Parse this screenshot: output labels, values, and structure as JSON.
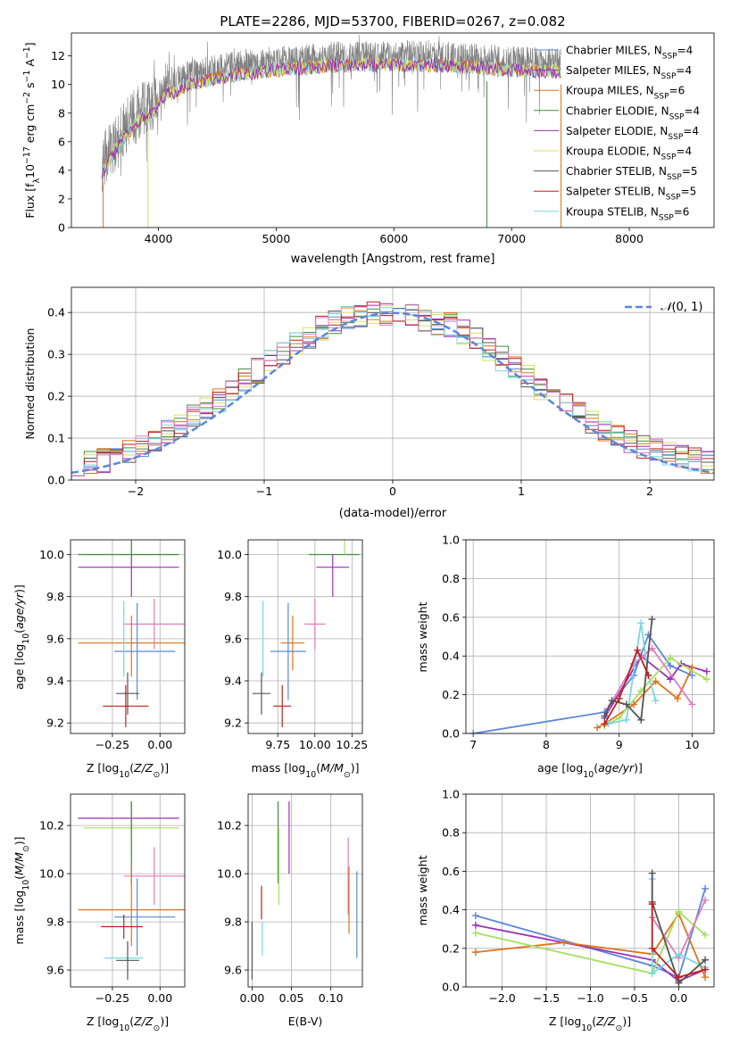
{
  "title": "PLATE=2286, MJD=53700, FIBERID=0267, z=0.082",
  "colors": {
    "Chabrier MILES": "#5b87d8",
    "Salpeter MILES": "#9b31b5",
    "Kroupa MILES": "#e0731c",
    "Chabrier ELODIE": "#3f8f3f",
    "Salpeter ELODIE": "#9b31b5",
    "Kroupa ELODIE": "#d8e060",
    "Chabrier STELIB": "#555555",
    "Salpeter STELIB": "#c21f1f",
    "Kroupa STELIB": "#77d8df",
    "grid": "#b0b0b0",
    "spectrum": "#808080",
    "normal_curve": "#5b87d8",
    "pink": "#e07cc0",
    "lightgreen": "#a6e060"
  },
  "chart_data": [
    {
      "type": "line",
      "id": "spectrum",
      "xlabel": "wavelength [Angstrom, rest frame]",
      "ylabel": "Flux [f_λ10^-17 erg cm^-2 s^-1 A^-1]",
      "xlim": [
        3260,
        8720
      ],
      "ylim": [
        0,
        13.6
      ],
      "xticks": [
        4000,
        5000,
        6000,
        7000,
        8000
      ],
      "yticks": [
        0,
        2,
        4,
        6,
        8,
        10,
        12
      ],
      "grid": false,
      "legend_position": "lower-right",
      "series": [
        {
          "name": "Chabrier MILES, N_SSP=4"
        },
        {
          "name": "Salpeter MILES, N_SSP=4"
        },
        {
          "name": "Kroupa MILES, N_SSP=6"
        },
        {
          "name": "Chabrier ELODIE, N_SSP=4"
        },
        {
          "name": "Salpeter ELODIE, N_SSP=4"
        },
        {
          "name": "Kroupa ELODIE, N_SSP=4"
        },
        {
          "name": "Chabrier STELIB, N_SSP=5"
        },
        {
          "name": "Salpeter STELIB, N_SSP=5"
        },
        {
          "name": "Kroupa STELIB, N_SSP=6"
        }
      ],
      "continuum": {
        "x": [
          3520,
          3700,
          3850,
          3950,
          4050,
          4300,
          4600,
          5000,
          5500,
          6000,
          6500,
          7000,
          7400
        ],
        "y": [
          4.5,
          6.8,
          8.2,
          8.5,
          9.8,
          10.7,
          11.2,
          11.6,
          11.9,
          12.0,
          11.9,
          11.6,
          11.5
        ]
      }
    },
    {
      "type": "line",
      "id": "residuals",
      "xlabel": "(data-model)/error",
      "ylabel": "Normed distribution",
      "xlim": [
        -2.5,
        2.5
      ],
      "ylim": [
        0,
        0.46
      ],
      "xticks": [
        -2,
        -1,
        0,
        1,
        2
      ],
      "yticks": [
        0.0,
        0.1,
        0.2,
        0.3,
        0.4
      ],
      "grid": true,
      "legend_position": "top-right",
      "curve_label": "N(0,1)",
      "bin_width": 0.1,
      "bin_start": -2.5
    },
    {
      "type": "scatter",
      "id": "z-age",
      "xlabel": "Z [log10(Z/Z⊙)]",
      "ylabel": "age [log10(age/yr)]",
      "xlim": [
        -0.47,
        0.13
      ],
      "ylim": [
        9.15,
        10.07
      ],
      "xticks": [
        -0.25,
        0.0
      ],
      "yticks": [
        9.2,
        9.4,
        9.6,
        9.8,
        10.0
      ],
      "grid": true,
      "points": [
        {
          "color": "lightgreen",
          "x": -0.15,
          "xerr": [
            0.25,
            0.25
          ],
          "y": 10.0,
          "yerr": [
            0.0,
            0.09
          ]
        },
        {
          "color": "#3f8f3f",
          "x": -0.15,
          "xerr": [
            0.28,
            0.25
          ],
          "y": 10.0,
          "yerr": [
            0.0,
            0.09
          ]
        },
        {
          "color": "#9b31b5",
          "x": -0.15,
          "xerr": [
            0.28,
            0.25
          ],
          "y": 9.94,
          "yerr": [
            0.14,
            0.06
          ]
        },
        {
          "color": "#e07cc0",
          "x": -0.03,
          "xerr": [
            0.16,
            0.16
          ],
          "y": 9.67,
          "yerr": [
            0.12,
            0.12
          ]
        },
        {
          "color": "#e0731c",
          "x": -0.15,
          "xerr": [
            0.28,
            0.28
          ],
          "y": 9.58,
          "yerr": [
            0.16,
            0.13
          ]
        },
        {
          "color": "#5b87d8",
          "x": -0.12,
          "xerr": [
            0.12,
            0.2
          ],
          "y": 9.54,
          "yerr": [
            0.23,
            0.23
          ]
        },
        {
          "color": "#77d8df",
          "x": -0.19,
          "xerr": [
            0.0,
            0.0
          ],
          "y": 9.6,
          "yerr": [
            0.18,
            0.18
          ]
        },
        {
          "color": "#555555",
          "x": -0.17,
          "xerr": [
            0.06,
            0.06
          ],
          "y": 9.34,
          "yerr": [
            0.1,
            0.1
          ]
        },
        {
          "color": "#c21f1f",
          "x": -0.18,
          "xerr": [
            0.12,
            0.12
          ],
          "y": 9.28,
          "yerr": [
            0.1,
            0.1
          ]
        }
      ]
    },
    {
      "type": "scatter",
      "id": "mass-age",
      "xlabel": "mass [log10(M/M⊙)]",
      "ylabel": "",
      "xlim": [
        9.55,
        10.32
      ],
      "ylim": [
        9.15,
        10.07
      ],
      "xticks": [
        9.75,
        10.0,
        10.25
      ],
      "yticks": [
        9.2,
        9.4,
        9.6,
        9.8,
        10.0
      ],
      "grid": true,
      "points": [
        {
          "color": "#3f8f3f",
          "x": 10.13,
          "xerr": [
            0.17,
            0.17
          ],
          "y": 10.0,
          "yerr": [
            0.0,
            0.0
          ]
        },
        {
          "color": "lightgreen",
          "x": 10.2,
          "xerr": [
            0.0,
            0.0
          ],
          "y": 10.0,
          "yerr": [
            0.0,
            0.09
          ]
        },
        {
          "color": "#9b31b5",
          "x": 10.12,
          "xerr": [
            0.11,
            0.11
          ],
          "y": 9.94,
          "yerr": [
            0.14,
            0.06
          ]
        },
        {
          "color": "#e07cc0",
          "x": 10.0,
          "xerr": [
            0.07,
            0.07
          ],
          "y": 9.67,
          "yerr": [
            0.12,
            0.12
          ]
        },
        {
          "color": "#e0731c",
          "x": 9.85,
          "xerr": [
            0.08,
            0.08
          ],
          "y": 9.58,
          "yerr": [
            0.13,
            0.13
          ]
        },
        {
          "color": "#5b87d8",
          "x": 9.82,
          "xerr": [
            0.12,
            0.12
          ],
          "y": 9.54,
          "yerr": [
            0.23,
            0.23
          ]
        },
        {
          "color": "#77d8df",
          "x": 9.65,
          "xerr": [
            0.0,
            0.0
          ],
          "y": 9.6,
          "yerr": [
            0.18,
            0.18
          ]
        },
        {
          "color": "#555555",
          "x": 9.64,
          "xerr": [
            0.06,
            0.06
          ],
          "y": 9.34,
          "yerr": [
            0.1,
            0.1
          ]
        },
        {
          "color": "#c21f1f",
          "x": 9.78,
          "xerr": [
            0.06,
            0.06
          ],
          "y": 9.28,
          "yerr": [
            0.1,
            0.1
          ]
        }
      ]
    },
    {
      "type": "line",
      "id": "age-weight",
      "xlabel": "age [log10(age/yr)]",
      "ylabel": "mass weight",
      "xlim": [
        6.9,
        10.3
      ],
      "ylim": [
        0,
        1.0
      ],
      "xticks": [
        7,
        8,
        9,
        10
      ],
      "yticks": [
        0.0,
        0.2,
        0.4,
        0.6,
        0.8,
        1.0
      ],
      "grid": true,
      "series": [
        {
          "color": "#5b87d8",
          "x": [
            7.0,
            8.8,
            9.2,
            9.4,
            9.7,
            10.0
          ],
          "y": [
            0.0,
            0.11,
            0.3,
            0.51,
            0.35,
            0.3
          ]
        },
        {
          "color": "#9b31b5",
          "x": [
            8.8,
            9.3,
            9.7,
            9.85,
            10.2
          ],
          "y": [
            0.08,
            0.4,
            0.28,
            0.36,
            0.32
          ]
        },
        {
          "color": "#e0731c",
          "x": [
            8.7,
            8.8,
            9.2,
            9.5,
            9.8,
            10.0
          ],
          "y": [
            0.03,
            0.05,
            0.15,
            0.27,
            0.18,
            0.34
          ]
        },
        {
          "color": "lightgreen",
          "x": [
            8.8,
            9.0,
            9.3,
            9.7,
            10.2
          ],
          "y": [
            0.04,
            0.08,
            0.22,
            0.39,
            0.28
          ]
        },
        {
          "color": "#e07cc0",
          "x": [
            8.85,
            9.2,
            9.45,
            10.0
          ],
          "y": [
            0.13,
            0.36,
            0.44,
            0.15
          ]
        },
        {
          "color": "#77d8df",
          "x": [
            8.85,
            9.1,
            9.3,
            9.4,
            9.5
          ],
          "y": [
            0.05,
            0.07,
            0.57,
            0.3,
            0.17
          ]
        },
        {
          "color": "#555555",
          "x": [
            8.8,
            8.9,
            9.1,
            9.3,
            9.45
          ],
          "y": [
            0.09,
            0.17,
            0.15,
            0.07,
            0.59
          ]
        },
        {
          "color": "#c21f1f",
          "x": [
            8.8,
            9.0,
            9.25,
            9.4
          ],
          "y": [
            0.05,
            0.18,
            0.43,
            0.3
          ]
        }
      ]
    },
    {
      "type": "scatter",
      "id": "z-mass",
      "xlabel": "Z [log10(Z/Z⊙)]",
      "ylabel": "mass [log10(M/M⊙)]",
      "xlim": [
        -0.47,
        0.13
      ],
      "ylim": [
        9.53,
        10.33
      ],
      "xticks": [
        -0.25,
        0.0
      ],
      "yticks": [
        9.6,
        9.8,
        10.0,
        10.2
      ],
      "grid": true,
      "points": [
        {
          "color": "#9b31b5",
          "x": -0.15,
          "xerr": [
            0.28,
            0.25
          ],
          "y": 10.23,
          "yerr": [
            0.07,
            0.07
          ]
        },
        {
          "color": "lightgreen",
          "x": -0.15,
          "xerr": [
            0.25,
            0.25
          ],
          "y": 10.19,
          "yerr": [
            0.11,
            0.11
          ]
        },
        {
          "color": "#3f8f3f",
          "x": -0.15,
          "xerr": [
            0.0,
            0.0
          ],
          "y": 10.13,
          "yerr": [
            0.17,
            0.17
          ]
        },
        {
          "color": "#e07cc0",
          "x": -0.03,
          "xerr": [
            0.16,
            0.16
          ],
          "y": 9.99,
          "yerr": [
            0.12,
            0.12
          ]
        },
        {
          "color": "#e0731c",
          "x": -0.15,
          "xerr": [
            0.28,
            0.28
          ],
          "y": 9.85,
          "yerr": [
            0.15,
            0.19
          ]
        },
        {
          "color": "#5b87d8",
          "x": -0.12,
          "xerr": [
            0.12,
            0.2
          ],
          "y": 9.82,
          "yerr": [
            0.16,
            0.16
          ]
        },
        {
          "color": "#c21f1f",
          "x": -0.19,
          "xerr": [
            0.12,
            0.1
          ],
          "y": 9.78,
          "yerr": [
            0.05,
            0.05
          ]
        },
        {
          "color": "#77d8df",
          "x": -0.19,
          "xerr": [
            0.1,
            0.1
          ],
          "y": 9.65,
          "yerr": [
            0.0,
            0.0
          ]
        },
        {
          "color": "#555555",
          "x": -0.17,
          "xerr": [
            0.06,
            0.06
          ],
          "y": 9.64,
          "yerr": [
            0.08,
            0.08
          ]
        }
      ]
    },
    {
      "type": "scatter",
      "id": "ebv-mass",
      "xlabel": "E(B-V)",
      "ylabel": "",
      "xlim": [
        -0.005,
        0.14
      ],
      "ylim": [
        9.53,
        10.33
      ],
      "xticks": [
        0.0,
        0.05,
        0.1
      ],
      "yticks": [
        9.6,
        9.8,
        10.0,
        10.2
      ],
      "grid": true,
      "points": [
        {
          "color": "#555555",
          "x": 0.0,
          "xerr": [
            0,
            0
          ],
          "y": 9.68,
          "yerr": [
            0.12,
            0.12
          ]
        },
        {
          "color": "#c21f1f",
          "x": 0.012,
          "xerr": [
            0,
            0
          ],
          "y": 9.88,
          "yerr": [
            0.07,
            0.07
          ]
        },
        {
          "color": "#77d8df",
          "x": 0.013,
          "xerr": [
            0,
            0
          ],
          "y": 9.73,
          "yerr": [
            0.07,
            0.07
          ]
        },
        {
          "color": "#3f8f3f",
          "x": 0.033,
          "xerr": [
            0,
            0
          ],
          "y": 10.13,
          "yerr": [
            0.17,
            0.17
          ]
        },
        {
          "color": "lightgreen",
          "x": 0.034,
          "xerr": [
            0,
            0
          ],
          "y": 10.03,
          "yerr": [
            0.16,
            0.16
          ]
        },
        {
          "color": "#9b31b5",
          "x": 0.047,
          "xerr": [
            0,
            0
          ],
          "y": 10.15,
          "yerr": [
            0.15,
            0.15
          ]
        },
        {
          "color": "#e07cc0",
          "x": 0.122,
          "xerr": [
            0,
            0
          ],
          "y": 9.99,
          "yerr": [
            0.16,
            0.16
          ]
        },
        {
          "color": "#e0731c",
          "x": 0.123,
          "xerr": [
            0,
            0
          ],
          "y": 9.89,
          "yerr": [
            0.14,
            0.14
          ]
        },
        {
          "color": "#5b87d8",
          "x": 0.133,
          "xerr": [
            0,
            0
          ],
          "y": 9.83,
          "yerr": [
            0.18,
            0.18
          ]
        }
      ]
    },
    {
      "type": "line",
      "id": "z-weight",
      "xlabel": "Z [log10(Z/Z⊙)]",
      "ylabel": "mass weight",
      "xlim": [
        -2.41,
        0.4
      ],
      "ylim": [
        0,
        1.0
      ],
      "xticks": [
        -2.0,
        -1.5,
        -1.0,
        -0.5,
        0.0
      ],
      "yticks": [
        0.0,
        0.2,
        0.4,
        0.6,
        0.8,
        1.0
      ],
      "grid": true,
      "series": [
        {
          "color": "#5b87d8",
          "x": [
            -2.3,
            -0.3,
            0.0,
            0.3
          ],
          "y": [
            0.37,
            0.11,
            0.05,
            0.51
          ]
        },
        {
          "color": "#9b31b5",
          "x": [
            -2.3,
            -0.3,
            0.0,
            0.3
          ],
          "y": [
            0.32,
            0.14,
            0.03,
            0.09
          ]
        },
        {
          "color": "#e0731c",
          "x": [
            -2.3,
            -1.3,
            -0.3,
            0.0,
            0.3
          ],
          "y": [
            0.18,
            0.23,
            0.17,
            0.38,
            0.05
          ]
        },
        {
          "color": "lightgreen",
          "x": [
            -2.3,
            -0.3,
            0.0,
            0.3
          ],
          "y": [
            0.28,
            0.07,
            0.39,
            0.27
          ]
        },
        {
          "color": "#e07cc0",
          "x": [
            -0.3,
            0.0,
            0.3
          ],
          "y": [
            0.36,
            0.15,
            0.45
          ]
        },
        {
          "color": "#77d8df",
          "x": [
            -0.3,
            -0.3,
            0.0,
            0.3
          ],
          "y": [
            0.56,
            0.07,
            0.17,
            0.1
          ]
        },
        {
          "color": "#555555",
          "x": [
            -0.3,
            -0.3,
            0.0,
            0.3
          ],
          "y": [
            0.59,
            0.44,
            0.02,
            0.14
          ]
        },
        {
          "color": "#c21f1f",
          "x": [
            -0.3,
            -0.3,
            0.0,
            0.3
          ],
          "y": [
            0.43,
            0.2,
            0.05,
            0.09
          ]
        }
      ]
    }
  ]
}
